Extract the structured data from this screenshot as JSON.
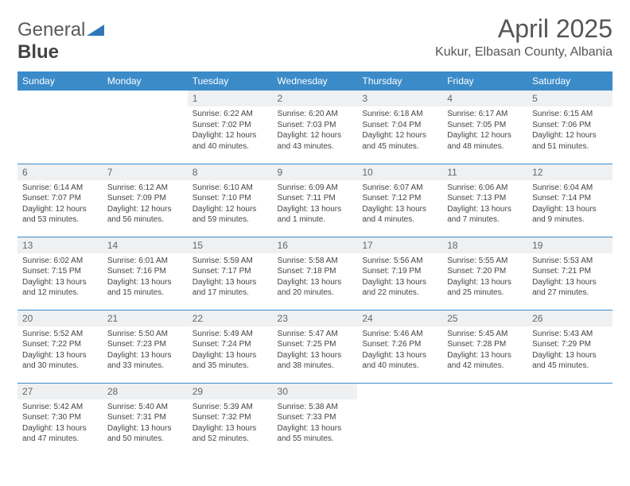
{
  "brand": {
    "part1": "General",
    "part2": "Blue"
  },
  "title": "April 2025",
  "location": "Kukur, Elbasan County, Albania",
  "colors": {
    "header_bg": "#3b8bc9",
    "header_fg": "#ffffff",
    "daynum_bg": "#eef0f2",
    "row_border": "#3b8bc9",
    "logo_blue": "#2f78b7"
  },
  "weekdays": [
    "Sunday",
    "Monday",
    "Tuesday",
    "Wednesday",
    "Thursday",
    "Friday",
    "Saturday"
  ],
  "weeks": [
    [
      {
        "n": "",
        "lines": []
      },
      {
        "n": "",
        "lines": []
      },
      {
        "n": "1",
        "lines": [
          "Sunrise: 6:22 AM",
          "Sunset: 7:02 PM",
          "Daylight: 12 hours",
          "and 40 minutes."
        ]
      },
      {
        "n": "2",
        "lines": [
          "Sunrise: 6:20 AM",
          "Sunset: 7:03 PM",
          "Daylight: 12 hours",
          "and 43 minutes."
        ]
      },
      {
        "n": "3",
        "lines": [
          "Sunrise: 6:18 AM",
          "Sunset: 7:04 PM",
          "Daylight: 12 hours",
          "and 45 minutes."
        ]
      },
      {
        "n": "4",
        "lines": [
          "Sunrise: 6:17 AM",
          "Sunset: 7:05 PM",
          "Daylight: 12 hours",
          "and 48 minutes."
        ]
      },
      {
        "n": "5",
        "lines": [
          "Sunrise: 6:15 AM",
          "Sunset: 7:06 PM",
          "Daylight: 12 hours",
          "and 51 minutes."
        ]
      }
    ],
    [
      {
        "n": "6",
        "lines": [
          "Sunrise: 6:14 AM",
          "Sunset: 7:07 PM",
          "Daylight: 12 hours",
          "and 53 minutes."
        ]
      },
      {
        "n": "7",
        "lines": [
          "Sunrise: 6:12 AM",
          "Sunset: 7:09 PM",
          "Daylight: 12 hours",
          "and 56 minutes."
        ]
      },
      {
        "n": "8",
        "lines": [
          "Sunrise: 6:10 AM",
          "Sunset: 7:10 PM",
          "Daylight: 12 hours",
          "and 59 minutes."
        ]
      },
      {
        "n": "9",
        "lines": [
          "Sunrise: 6:09 AM",
          "Sunset: 7:11 PM",
          "Daylight: 13 hours",
          "and 1 minute."
        ]
      },
      {
        "n": "10",
        "lines": [
          "Sunrise: 6:07 AM",
          "Sunset: 7:12 PM",
          "Daylight: 13 hours",
          "and 4 minutes."
        ]
      },
      {
        "n": "11",
        "lines": [
          "Sunrise: 6:06 AM",
          "Sunset: 7:13 PM",
          "Daylight: 13 hours",
          "and 7 minutes."
        ]
      },
      {
        "n": "12",
        "lines": [
          "Sunrise: 6:04 AM",
          "Sunset: 7:14 PM",
          "Daylight: 13 hours",
          "and 9 minutes."
        ]
      }
    ],
    [
      {
        "n": "13",
        "lines": [
          "Sunrise: 6:02 AM",
          "Sunset: 7:15 PM",
          "Daylight: 13 hours",
          "and 12 minutes."
        ]
      },
      {
        "n": "14",
        "lines": [
          "Sunrise: 6:01 AM",
          "Sunset: 7:16 PM",
          "Daylight: 13 hours",
          "and 15 minutes."
        ]
      },
      {
        "n": "15",
        "lines": [
          "Sunrise: 5:59 AM",
          "Sunset: 7:17 PM",
          "Daylight: 13 hours",
          "and 17 minutes."
        ]
      },
      {
        "n": "16",
        "lines": [
          "Sunrise: 5:58 AM",
          "Sunset: 7:18 PM",
          "Daylight: 13 hours",
          "and 20 minutes."
        ]
      },
      {
        "n": "17",
        "lines": [
          "Sunrise: 5:56 AM",
          "Sunset: 7:19 PM",
          "Daylight: 13 hours",
          "and 22 minutes."
        ]
      },
      {
        "n": "18",
        "lines": [
          "Sunrise: 5:55 AM",
          "Sunset: 7:20 PM",
          "Daylight: 13 hours",
          "and 25 minutes."
        ]
      },
      {
        "n": "19",
        "lines": [
          "Sunrise: 5:53 AM",
          "Sunset: 7:21 PM",
          "Daylight: 13 hours",
          "and 27 minutes."
        ]
      }
    ],
    [
      {
        "n": "20",
        "lines": [
          "Sunrise: 5:52 AM",
          "Sunset: 7:22 PM",
          "Daylight: 13 hours",
          "and 30 minutes."
        ]
      },
      {
        "n": "21",
        "lines": [
          "Sunrise: 5:50 AM",
          "Sunset: 7:23 PM",
          "Daylight: 13 hours",
          "and 33 minutes."
        ]
      },
      {
        "n": "22",
        "lines": [
          "Sunrise: 5:49 AM",
          "Sunset: 7:24 PM",
          "Daylight: 13 hours",
          "and 35 minutes."
        ]
      },
      {
        "n": "23",
        "lines": [
          "Sunrise: 5:47 AM",
          "Sunset: 7:25 PM",
          "Daylight: 13 hours",
          "and 38 minutes."
        ]
      },
      {
        "n": "24",
        "lines": [
          "Sunrise: 5:46 AM",
          "Sunset: 7:26 PM",
          "Daylight: 13 hours",
          "and 40 minutes."
        ]
      },
      {
        "n": "25",
        "lines": [
          "Sunrise: 5:45 AM",
          "Sunset: 7:28 PM",
          "Daylight: 13 hours",
          "and 42 minutes."
        ]
      },
      {
        "n": "26",
        "lines": [
          "Sunrise: 5:43 AM",
          "Sunset: 7:29 PM",
          "Daylight: 13 hours",
          "and 45 minutes."
        ]
      }
    ],
    [
      {
        "n": "27",
        "lines": [
          "Sunrise: 5:42 AM",
          "Sunset: 7:30 PM",
          "Daylight: 13 hours",
          "and 47 minutes."
        ]
      },
      {
        "n": "28",
        "lines": [
          "Sunrise: 5:40 AM",
          "Sunset: 7:31 PM",
          "Daylight: 13 hours",
          "and 50 minutes."
        ]
      },
      {
        "n": "29",
        "lines": [
          "Sunrise: 5:39 AM",
          "Sunset: 7:32 PM",
          "Daylight: 13 hours",
          "and 52 minutes."
        ]
      },
      {
        "n": "30",
        "lines": [
          "Sunrise: 5:38 AM",
          "Sunset: 7:33 PM",
          "Daylight: 13 hours",
          "and 55 minutes."
        ]
      },
      {
        "n": "",
        "lines": []
      },
      {
        "n": "",
        "lines": []
      },
      {
        "n": "",
        "lines": []
      }
    ]
  ]
}
